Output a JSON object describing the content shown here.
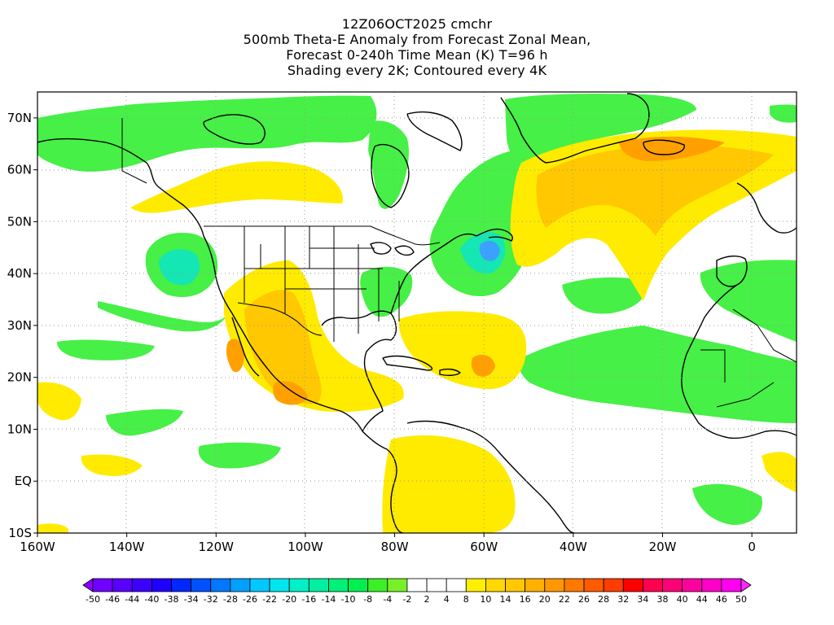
{
  "title": {
    "line1": "12Z06OCT2025 cmchr",
    "line2": "500mb Theta-E Anomaly from Forecast Zonal Mean,",
    "line3": "Forecast 0-240h Time Mean (K) T=96 h",
    "line4": "Shading every 2K; Contoured every 4K"
  },
  "axes": {
    "lon_labels": [
      "160W",
      "140W",
      "120W",
      "100W",
      "80W",
      "60W",
      "40W",
      "20W",
      "0"
    ],
    "lat_labels": [
      "70N",
      "60N",
      "50N",
      "40N",
      "30N",
      "20N",
      "10N",
      "EQ",
      "10S"
    ],
    "lon_range": [
      -160,
      10
    ],
    "lat_range": [
      -10,
      75
    ]
  },
  "colorbar": {
    "labels": [
      "-50",
      "-46",
      "-44",
      "-40",
      "-38",
      "-34",
      "-32",
      "-28",
      "-26",
      "-22",
      "-20",
      "-16",
      "-14",
      "-10",
      "-8",
      "-4",
      "-2",
      "2",
      "4",
      "8",
      "10",
      "14",
      "16",
      "20",
      "22",
      "26",
      "28",
      "32",
      "34",
      "38",
      "40",
      "44",
      "46",
      "50"
    ],
    "colors": [
      "#8b00ff",
      "#7000ff",
      "#5a00ff",
      "#3c00ff",
      "#1e00ff",
      "#0028ff",
      "#0050ff",
      "#0078ff",
      "#00a0ff",
      "#00c8ff",
      "#00e6f0",
      "#00f0c8",
      "#00f0a0",
      "#00f078",
      "#00f050",
      "#3cf028",
      "#78f028",
      "#ffffff",
      "#ffffff",
      "#ffffff",
      "#fff000",
      "#ffd800",
      "#ffc800",
      "#ffb000",
      "#ff9800",
      "#ff7800",
      "#ff5a00",
      "#ff3c00",
      "#ff0000",
      "#ff0050",
      "#ff0078",
      "#ff00a0",
      "#ff00c8",
      "#ff00f0",
      "#ff28ff"
    ]
  },
  "colors": {
    "green": "#46f046",
    "lightgreen": "#7df07d",
    "yellow": "#ffeb00",
    "gold": "#ffc800",
    "orange": "#ffa000",
    "darkorange": "#f08200",
    "teal": "#14e6b4",
    "cyan": "#28c8f0",
    "blue": "#3ca0ff"
  }
}
